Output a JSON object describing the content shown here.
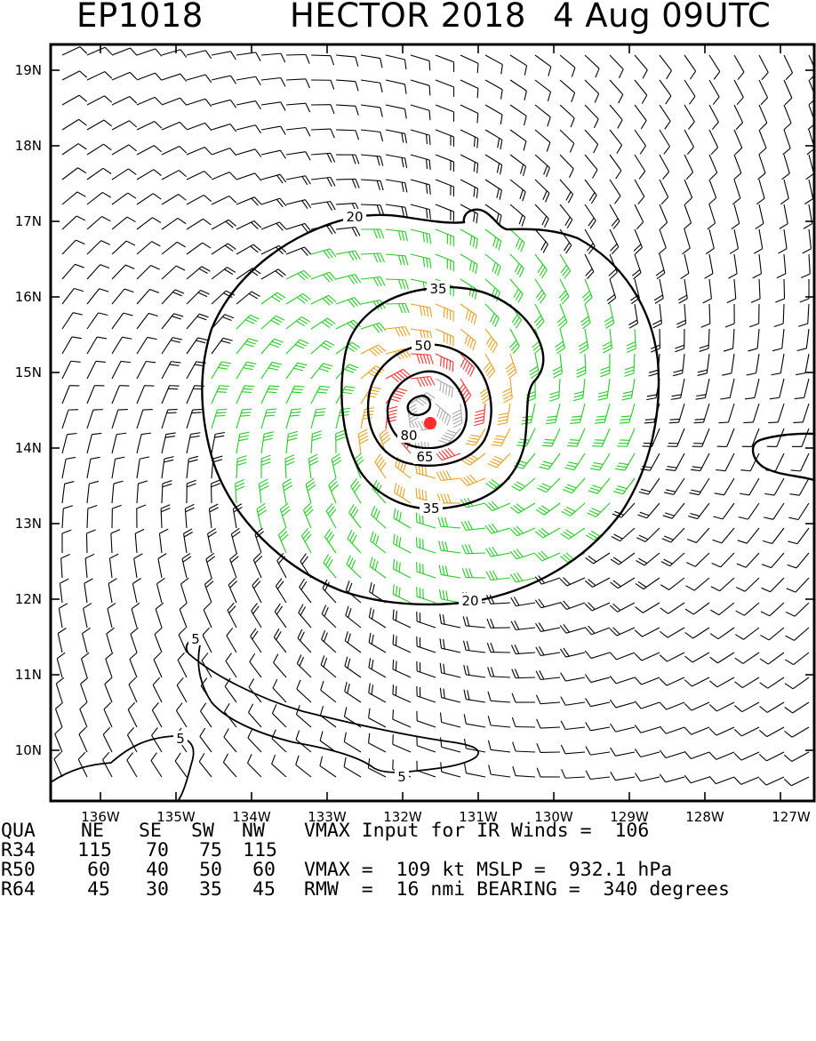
{
  "title": {
    "storm_id": "EP1018",
    "storm_name_year": "HECTOR 2018",
    "datetime": "4 Aug 09UTC"
  },
  "map": {
    "lat_labels": [
      "19N",
      "18N",
      "17N",
      "16N",
      "15N",
      "14N",
      "13N",
      "12N",
      "11N",
      "10N"
    ],
    "lon_labels": [
      "136W",
      "135W",
      "134W",
      "133W",
      "132W",
      "131W",
      "130W",
      "129W",
      "128W",
      "127W"
    ],
    "contour_labels": [
      "20",
      "35",
      "50",
      "65",
      "80",
      "20",
      "35",
      "5",
      "5",
      "5"
    ],
    "center_color": "#ff2a2a",
    "barb_colors": {
      "calm": "#000000",
      "gale": "#22cc22",
      "storm": "#e8a020",
      "hurricane": "#ff3030",
      "intense": "#aaaaaa"
    },
    "center_marker": "storm-center-dot"
  },
  "info": {
    "header": {
      "label": "QUA",
      "ne": "NE",
      "se": "SE",
      "sw": "SW",
      "nw": "NW"
    },
    "rows": [
      {
        "label": "R34",
        "ne": "115",
        "se": "70",
        "sw": "75",
        "nw": "115"
      },
      {
        "label": "R50",
        "ne": "60",
        "se": "40",
        "sw": "50",
        "nw": "60"
      },
      {
        "label": "R64",
        "ne": "45",
        "se": "30",
        "sw": "35",
        "nw": "45"
      }
    ],
    "vmax_input": "VMAX Input for IR Winds =  106",
    "vmax_line": "VMAX =  109 kt MSLP =  932.1 hPa",
    "rmw_line": "RMW  =  16 nmi BEARING =  340 degrees"
  }
}
